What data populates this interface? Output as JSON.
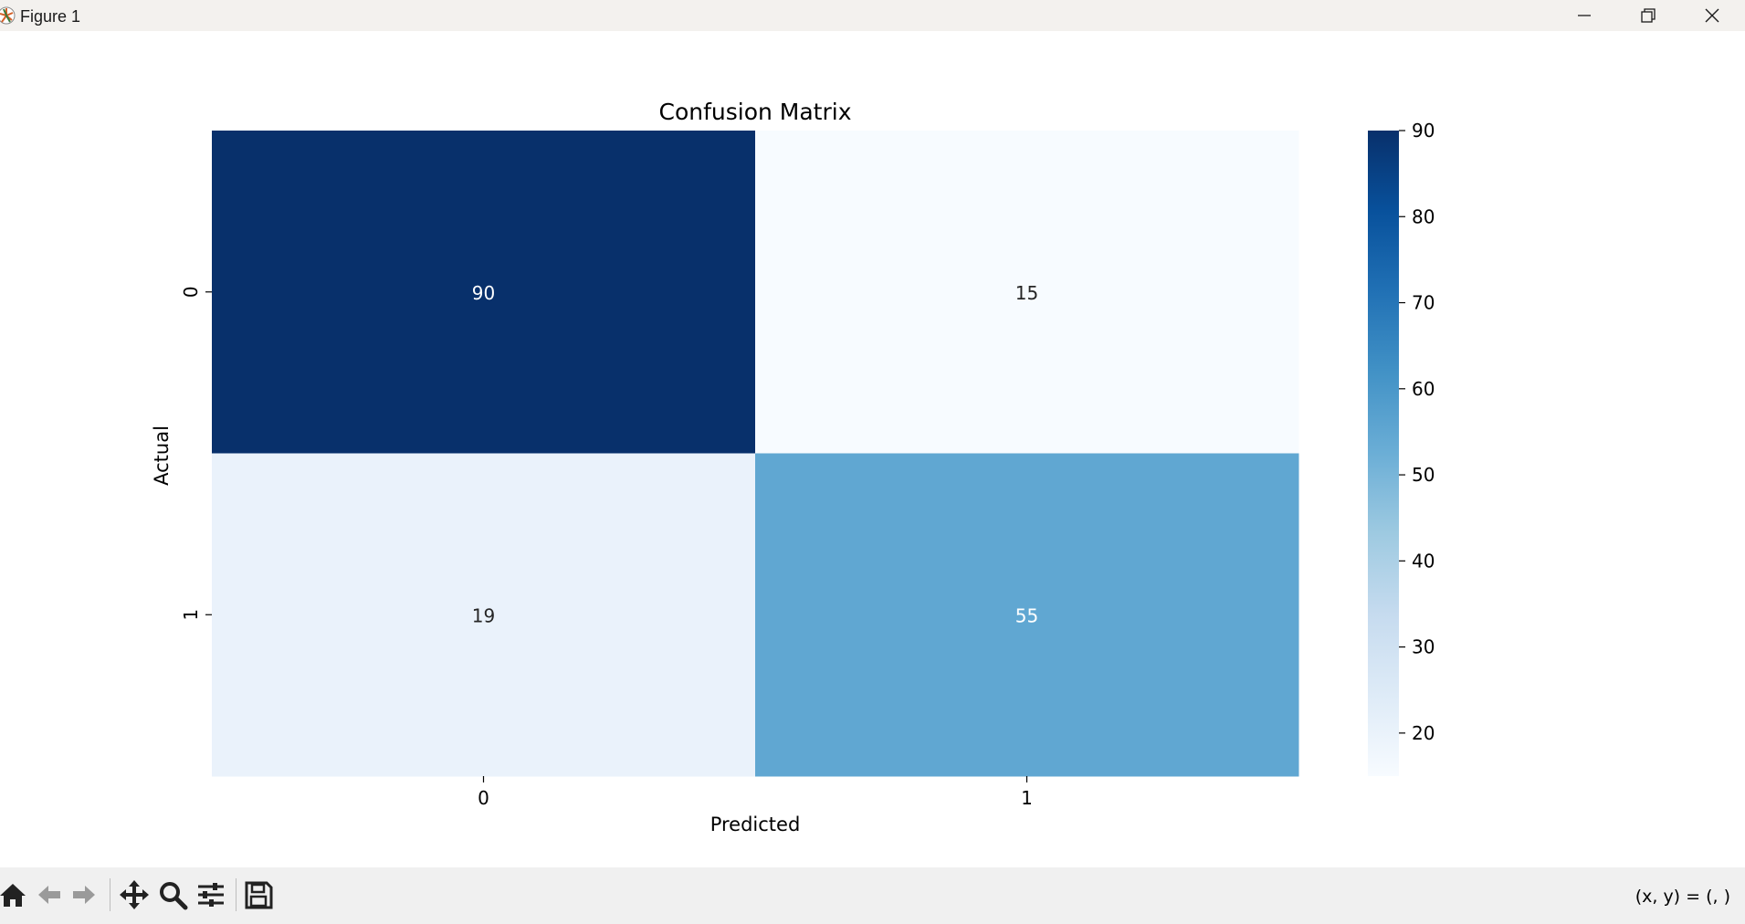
{
  "window": {
    "title": "Figure 1",
    "buttons": {
      "minimize": "minimize-icon",
      "maximize": "restore-icon",
      "close": "close-icon"
    }
  },
  "toolbar": {
    "tools": [
      "home-icon",
      "back-icon",
      "forward-icon",
      "pan-icon",
      "zoom-icon",
      "configure-subplots-icon",
      "save-icon"
    ],
    "coords_text": "(x, y) = (, )"
  },
  "chart_data": {
    "type": "heatmap",
    "title": "Confusion Matrix",
    "xlabel": "Predicted",
    "ylabel": "Actual",
    "x_categories": [
      "0",
      "1"
    ],
    "y_categories": [
      "0",
      "1"
    ],
    "values": [
      [
        90,
        15
      ],
      [
        19,
        55
      ]
    ],
    "colormap": "Blues",
    "colors": {
      "90": "#08306b",
      "15": "#f7fbff",
      "19": "#eaf2fb",
      "55": "#60a7d2"
    },
    "annotation_colors": {
      "dark_cell": "#ffffff",
      "light_cell": "#262626"
    },
    "colorbar": {
      "min": 15,
      "max": 90,
      "ticks": [
        20,
        30,
        40,
        50,
        60,
        70,
        80,
        90
      ]
    }
  }
}
